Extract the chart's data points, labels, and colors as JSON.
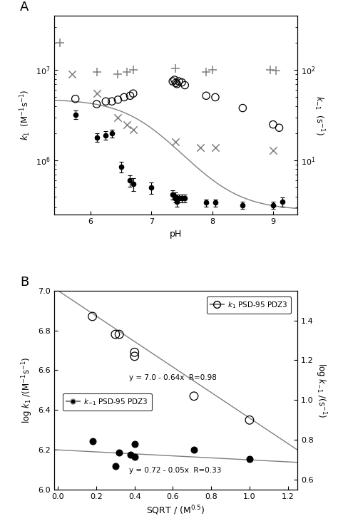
{
  "panel_A": {
    "title": "A",
    "xlabel": "pH",
    "ylabel_left": "$k_1$ (M$^{-1}$s$^{-1}$)",
    "ylabel_right": "$k_{-1}$ (s$^{-1}$)",
    "xlim": [
      5.4,
      9.4
    ],
    "ylim_left": [
      250000.0,
      40000000.0
    ],
    "ylim_right": [
      2.5,
      400
    ],
    "k1_PSD95_x": [
      5.75,
      6.1,
      6.25,
      6.35,
      6.45,
      6.55,
      6.65,
      6.7,
      7.35,
      7.38,
      7.4,
      7.42,
      7.45,
      7.5,
      7.55,
      7.9,
      8.05,
      8.5,
      9.0,
      9.1
    ],
    "k1_PSD95_y": [
      4800000.0,
      4200000.0,
      4500000.0,
      4500000.0,
      4700000.0,
      5000000.0,
      5200000.0,
      5500000.0,
      7500000.0,
      7800000.0,
      7200000.0,
      7000000.0,
      7500000.0,
      7300000.0,
      6800000.0,
      5200000.0,
      5000000.0,
      3800000.0,
      2500000.0,
      2300000.0
    ],
    "k1_PTPBL_x": [
      5.5,
      6.1,
      6.45,
      6.6,
      6.7,
      7.4,
      7.9,
      8.0,
      8.95,
      9.05
    ],
    "k1_PTPBL_y": [
      20000000.0,
      9500000.0,
      9000000.0,
      9500000.0,
      10000000.0,
      10500000.0,
      9500000.0,
      10000000.0,
      10000000.0,
      9800000.0
    ],
    "km1_PSD95_x": [
      5.75,
      6.1,
      6.25,
      6.35,
      6.5,
      6.65,
      6.7,
      7.0,
      7.35,
      7.4,
      7.4,
      7.42,
      7.45,
      7.5,
      7.55,
      7.9,
      8.05,
      8.5,
      9.0,
      9.15
    ],
    "km1_PSD95_y": [
      3200000.0,
      1800000.0,
      1900000.0,
      2000000.0,
      850000.0,
      600000.0,
      550000.0,
      500000.0,
      420000.0,
      380000.0,
      400000.0,
      350000.0,
      380000.0,
      380000.0,
      380000.0,
      340000.0,
      340000.0,
      320000.0,
      320000.0,
      350000.0
    ],
    "km1_PSD95_yerr": [
      350000.0,
      200000.0,
      200000.0,
      200000.0,
      120000.0,
      90000.0,
      90000.0,
      70000.0,
      50000.0,
      40000.0,
      40000.0,
      40000.0,
      40000.0,
      40000.0,
      40000.0,
      30000.0,
      30000.0,
      30000.0,
      30000.0,
      40000.0
    ],
    "km1_PTPBL_x": [
      5.7,
      6.1,
      6.45,
      6.6,
      6.7,
      7.4,
      7.8,
      8.05,
      9.0
    ],
    "km1_PTPBL_y": [
      9000000.0,
      5500000.0,
      3000000.0,
      2500000.0,
      2200000.0,
      1600000.0,
      1400000.0,
      1400000.0,
      1300000.0
    ],
    "fit_pKa": 6.9,
    "fit_A": 280000.0,
    "fit_B": 4500000.0
  },
  "panel_B": {
    "title": "B",
    "xlabel": "SQRT / (M$^{0.5}$)",
    "ylabel_left": "log $k_1$ /(M$^{-1}$s$^{-1}$)",
    "ylabel_right": "log $k_{-1}$ /(s$^{-1}$)",
    "xlim": [
      -0.02,
      1.25
    ],
    "ylim_left": [
      6.0,
      7.0
    ],
    "ylim_right": [
      0.55,
      1.55
    ],
    "k1_x": [
      0.18,
      0.3,
      0.32,
      0.4,
      0.4,
      0.71,
      1.0
    ],
    "k1_y": [
      6.87,
      6.78,
      6.78,
      6.69,
      6.67,
      6.47,
      6.35
    ],
    "km1_x": [
      0.18,
      0.3,
      0.32,
      0.38,
      0.4,
      0.4,
      0.71,
      1.0
    ],
    "km1_y": [
      6.245,
      6.12,
      6.185,
      6.175,
      6.23,
      6.165,
      6.2,
      6.155
    ],
    "fit1_slope": -0.64,
    "fit1_intercept": 7.0,
    "fit1_label": "y = 7.0 - 0.64x  R=0.98",
    "fitm1_slope": -0.05,
    "fitm1_intercept": 6.2,
    "fitm1_label": "y = 0.72 - 0.05x  R=0.33",
    "leg1_label": "$k_1$ PSD-95 PDZ3",
    "legm1_label": "$k_{-1}$ PSD-95 PDZ3"
  }
}
